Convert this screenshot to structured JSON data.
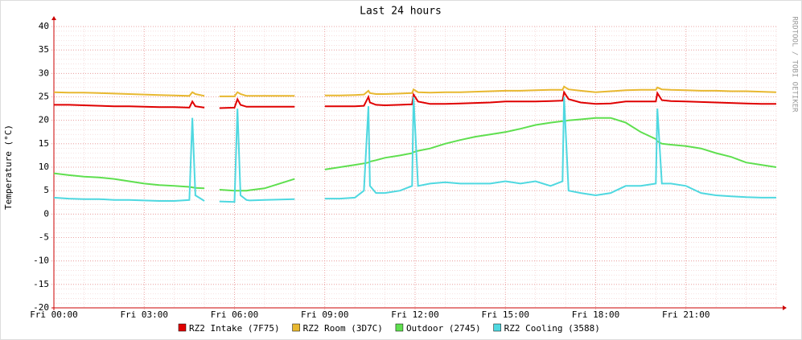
{
  "chart_data": {
    "type": "line",
    "title": "Last 24 hours",
    "y_label": "Temperature (°C)",
    "watermark": "RRDTOOL / TOBI OETIKER",
    "x": [
      0,
      0.5,
      1,
      1.5,
      2,
      2.5,
      3,
      3.5,
      4,
      4.5,
      4.6,
      4.7,
      5,
      5.2,
      5.5,
      6,
      6.1,
      6.2,
      6.4,
      6.5,
      7,
      7.5,
      8,
      8.5,
      9,
      9.5,
      10,
      10.3,
      10.45,
      10.5,
      10.7,
      11,
      11.5,
      11.9,
      11.95,
      12.1,
      12.5,
      13,
      13.5,
      14,
      14.5,
      15,
      15.5,
      16,
      16.5,
      16.9,
      16.95,
      17.1,
      17.5,
      18,
      18.5,
      19,
      19.5,
      20,
      20.05,
      20.2,
      20.5,
      21,
      21.5,
      22,
      22.5,
      23,
      23.5,
      24
    ],
    "series": [
      {
        "name": "RZ2 Intake (7F75)",
        "color": "#e00000",
        "values": [
          23.3,
          23.3,
          23.2,
          23.1,
          23,
          23,
          22.9,
          22.8,
          22.8,
          22.7,
          24,
          23,
          22.7,
          null,
          22.6,
          22.7,
          24.5,
          23.3,
          22.9,
          22.9,
          22.9,
          22.9,
          22.9,
          null,
          23,
          23,
          23,
          23.1,
          25,
          23.8,
          23.3,
          23.2,
          23.3,
          23.4,
          25.5,
          24,
          23.5,
          23.5,
          23.6,
          23.7,
          23.8,
          24,
          24,
          24,
          24.1,
          24.2,
          26,
          24.5,
          23.8,
          23.5,
          23.6,
          24,
          24,
          24,
          25.8,
          24.3,
          24.1,
          24,
          23.9,
          23.8,
          23.7,
          23.6,
          23.5,
          23.5
        ]
      },
      {
        "name": "RZ2 Room (3D7C)",
        "color": "#e8b830",
        "values": [
          26,
          25.9,
          25.9,
          25.8,
          25.7,
          25.6,
          25.5,
          25.4,
          25.3,
          25.2,
          26,
          25.6,
          25.2,
          null,
          25.1,
          25.1,
          26,
          25.6,
          25.2,
          25.2,
          25.2,
          25.2,
          25.2,
          null,
          25.3,
          25.3,
          25.4,
          25.5,
          26.3,
          25.8,
          25.6,
          25.6,
          25.7,
          25.8,
          26.6,
          26,
          25.9,
          26,
          26,
          26.1,
          26.2,
          26.3,
          26.3,
          26.4,
          26.5,
          26.5,
          27.2,
          26.6,
          26.3,
          26,
          26.2,
          26.4,
          26.5,
          26.5,
          27,
          26.6,
          26.5,
          26.4,
          26.3,
          26.3,
          26.2,
          26.2,
          26.1,
          26
        ]
      },
      {
        "name": "Outdoor (2745)",
        "color": "#5fdf4f",
        "values": [
          8.7,
          8.3,
          8,
          7.8,
          7.5,
          7,
          6.5,
          6.2,
          6,
          5.8,
          5.7,
          5.6,
          5.5,
          null,
          5.2,
          5,
          5,
          5,
          5,
          5.1,
          5.5,
          6.5,
          7.5,
          null,
          9.5,
          10,
          10.5,
          10.8,
          11,
          11.2,
          11.5,
          12,
          12.5,
          13,
          13.2,
          13.5,
          14,
          15,
          15.8,
          16.5,
          17,
          17.5,
          18.2,
          19,
          19.5,
          19.8,
          19.8,
          20,
          20.2,
          20.5,
          20.5,
          19.5,
          17.5,
          16,
          15.5,
          15,
          14.8,
          14.5,
          14,
          13,
          12.2,
          11,
          10.5,
          10
        ]
      },
      {
        "name": "RZ2 Cooling (3588)",
        "color": "#4fd8e0",
        "values": [
          3.5,
          3.3,
          3.2,
          3.2,
          3,
          3,
          2.9,
          2.8,
          2.8,
          3,
          20.5,
          4,
          2.8,
          null,
          2.7,
          2.6,
          22.5,
          4,
          3,
          2.9,
          3,
          3.1,
          3.2,
          null,
          3.3,
          3.3,
          3.5,
          5,
          23,
          6,
          4.5,
          4.5,
          5,
          6,
          25,
          6,
          6.5,
          6.8,
          6.5,
          6.5,
          6.5,
          7,
          6.5,
          7,
          6,
          7,
          25,
          5,
          4.5,
          4,
          4.5,
          6,
          6,
          6.5,
          22.5,
          6.5,
          6.5,
          6,
          4.5,
          4,
          3.8,
          3.6,
          3.5,
          3.5
        ]
      }
    ],
    "xlim": [
      0,
      24
    ],
    "xticks": [
      {
        "value": 0,
        "label": "Fri 00:00"
      },
      {
        "value": 3,
        "label": "Fri 03:00"
      },
      {
        "value": 6,
        "label": "Fri 06:00"
      },
      {
        "value": 9,
        "label": "Fri 09:00"
      },
      {
        "value": 12,
        "label": "Fri 12:00"
      },
      {
        "value": 15,
        "label": "Fri 15:00"
      },
      {
        "value": 18,
        "label": "Fri 18:00"
      },
      {
        "value": 21,
        "label": "Fri 21:00"
      }
    ],
    "ylim": [
      -20,
      40
    ],
    "yticks": [
      -20,
      -15,
      -10,
      -5,
      0,
      5,
      10,
      15,
      20,
      25,
      30,
      35,
      40
    ],
    "grid": true
  }
}
